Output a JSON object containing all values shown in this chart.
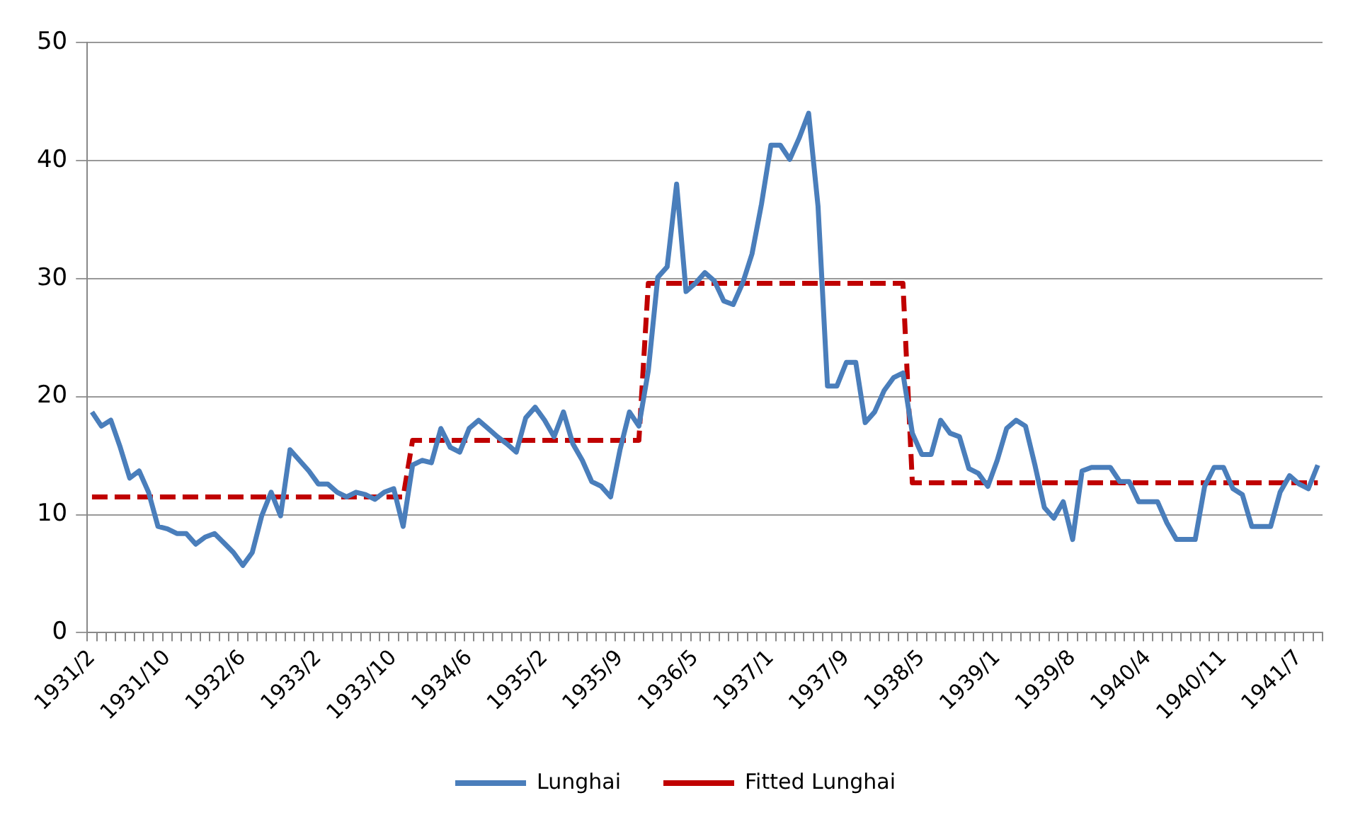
{
  "chart_data": {
    "type": "line",
    "categories": [
      "1931/2",
      null,
      null,
      null,
      null,
      null,
      null,
      null,
      "1931/10",
      null,
      null,
      null,
      null,
      null,
      null,
      null,
      "1932/6",
      null,
      null,
      null,
      null,
      null,
      null,
      null,
      "1933/2",
      null,
      null,
      null,
      null,
      null,
      null,
      null,
      "1933/10",
      null,
      null,
      null,
      null,
      null,
      null,
      null,
      "1934/6",
      null,
      null,
      null,
      null,
      null,
      null,
      null,
      "1935/2",
      null,
      null,
      null,
      null,
      null,
      null,
      null,
      "1935/9",
      null,
      null,
      null,
      null,
      null,
      null,
      null,
      "1936/5",
      null,
      null,
      null,
      null,
      null,
      null,
      null,
      "1937/1",
      null,
      null,
      null,
      null,
      null,
      null,
      null,
      "1937/9",
      null,
      null,
      null,
      null,
      null,
      null,
      null,
      "1938/5",
      null,
      null,
      null,
      null,
      null,
      null,
      null,
      "1939/1",
      null,
      null,
      null,
      null,
      null,
      null,
      null,
      "1939/8",
      null,
      null,
      null,
      null,
      null,
      null,
      null,
      "1940/4",
      null,
      null,
      null,
      null,
      null,
      null,
      null,
      "1940/11",
      null,
      null,
      null,
      null,
      null,
      null,
      null,
      "1941/7",
      null,
      null
    ],
    "series": [
      {
        "name": "Lunghai",
        "color": "#4a7ebb",
        "line_style": "solid",
        "values": [
          18.7,
          17.5,
          18.0,
          15.7,
          13.1,
          13.7,
          11.9,
          9.0,
          8.8,
          8.4,
          8.4,
          7.5,
          8.1,
          8.4,
          7.6,
          6.8,
          5.7,
          6.8,
          9.9,
          11.9,
          9.9,
          15.5,
          14.6,
          13.7,
          12.6,
          12.6,
          11.9,
          11.5,
          11.9,
          11.7,
          11.3,
          11.9,
          12.2,
          9.0,
          14.2,
          14.6,
          14.4,
          17.3,
          15.7,
          15.3,
          17.3,
          18.0,
          17.3,
          16.6,
          16.0,
          15.3,
          18.2,
          19.1,
          18.0,
          16.6,
          18.7,
          16.0,
          14.6,
          12.8,
          12.4,
          11.5,
          15.5,
          18.7,
          17.5,
          22.2,
          30.1,
          31.0,
          38.0,
          28.9,
          29.6,
          30.5,
          29.8,
          28.1,
          27.8,
          29.6,
          32.1,
          36.3,
          41.3,
          41.3,
          40.1,
          41.9,
          44.0,
          36.1,
          20.9,
          20.9,
          22.9,
          22.9,
          17.8,
          18.7,
          20.5,
          21.6,
          22.0,
          16.9,
          15.1,
          15.1,
          18.0,
          16.9,
          16.6,
          13.9,
          13.5,
          12.4,
          14.6,
          17.3,
          18.0,
          17.5,
          14.2,
          10.6,
          9.7,
          11.1,
          7.9,
          13.7,
          14.0,
          14.0,
          14.0,
          12.8,
          12.8,
          11.1,
          11.1,
          11.1,
          9.3,
          7.9,
          7.9,
          7.9,
          12.4,
          14.0,
          14.0,
          12.2,
          11.7,
          9.0,
          9.0,
          9.0,
          11.9,
          13.3,
          12.6,
          12.2,
          14.2
        ]
      },
      {
        "name": "Fitted Lunghai",
        "color": "#c00000",
        "line_style": "dashed",
        "values": [
          11.5,
          11.5,
          11.5,
          11.5,
          11.5,
          11.5,
          11.5,
          11.5,
          11.5,
          11.5,
          11.5,
          11.5,
          11.5,
          11.5,
          11.5,
          11.5,
          11.5,
          11.5,
          11.5,
          11.5,
          11.5,
          11.5,
          11.5,
          11.5,
          11.5,
          11.5,
          11.5,
          11.5,
          11.5,
          11.5,
          11.5,
          11.5,
          11.5,
          11.5,
          16.3,
          16.3,
          16.3,
          16.3,
          16.3,
          16.3,
          16.3,
          16.3,
          16.3,
          16.3,
          16.3,
          16.3,
          16.3,
          16.3,
          16.3,
          16.3,
          16.3,
          16.3,
          16.3,
          16.3,
          16.3,
          16.3,
          16.3,
          16.3,
          16.3,
          29.6,
          29.6,
          29.6,
          29.6,
          29.6,
          29.6,
          29.6,
          29.6,
          29.6,
          29.6,
          29.6,
          29.6,
          29.6,
          29.6,
          29.6,
          29.6,
          29.6,
          29.6,
          29.6,
          29.6,
          29.6,
          29.6,
          29.6,
          29.6,
          29.6,
          29.6,
          29.6,
          29.6,
          12.7,
          12.7,
          12.7,
          12.7,
          12.7,
          12.7,
          12.7,
          12.7,
          12.7,
          12.7,
          12.7,
          12.7,
          12.7,
          12.7,
          12.7,
          12.7,
          12.7,
          12.7,
          12.7,
          12.7,
          12.7,
          12.7,
          12.7,
          12.7,
          12.7,
          12.7,
          12.7,
          12.7,
          12.7,
          12.7,
          12.7,
          12.7,
          12.7,
          12.7,
          12.7,
          12.7,
          12.7,
          12.7,
          12.7,
          12.7,
          12.7,
          12.7,
          12.7,
          12.7
        ]
      }
    ],
    "ylim": [
      0,
      50
    ],
    "yticks": [
      0,
      10,
      20,
      30,
      40,
      50
    ],
    "grid": "y",
    "legend": "bottom",
    "marker": "none"
  }
}
